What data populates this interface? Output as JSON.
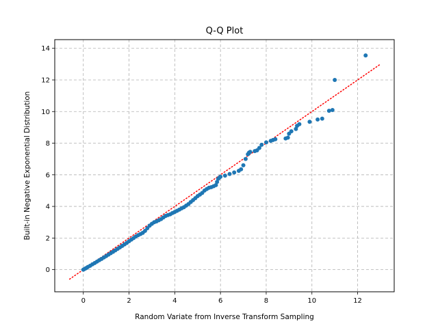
{
  "chart_data": {
    "type": "scatter",
    "title": "Q-Q Plot",
    "xlabel": "Random Variate from Inverse Transform Sampling",
    "ylabel": "Built-in Negative Exponential Distribution",
    "xlim": [
      -1.25,
      13.6
    ],
    "ylim": [
      -1.4,
      14.55
    ],
    "xticks": [
      0,
      2,
      4,
      6,
      8,
      10,
      12
    ],
    "yticks": [
      0,
      2,
      4,
      6,
      8,
      10,
      12,
      14
    ],
    "grid": true,
    "point_color": "#1f77b4",
    "reference_line": {
      "x": [
        -0.6,
        13.0
      ],
      "y": [
        -0.6,
        13.0
      ],
      "color": "#ff0000",
      "style": "dotted"
    },
    "series": [
      {
        "points": [
          [
            0.0,
            0.0
          ],
          [
            0.05,
            0.04
          ],
          [
            0.1,
            0.08
          ],
          [
            0.15,
            0.12
          ],
          [
            0.2,
            0.17
          ],
          [
            0.3,
            0.25
          ],
          [
            0.4,
            0.34
          ],
          [
            0.5,
            0.42
          ],
          [
            0.6,
            0.51
          ],
          [
            0.7,
            0.6
          ],
          [
            0.8,
            0.68
          ],
          [
            0.9,
            0.77
          ],
          [
            1.0,
            0.86
          ],
          [
            1.1,
            0.95
          ],
          [
            1.2,
            1.04
          ],
          [
            1.3,
            1.13
          ],
          [
            1.4,
            1.22
          ],
          [
            1.5,
            1.32
          ],
          [
            1.6,
            1.41
          ],
          [
            1.7,
            1.5
          ],
          [
            1.8,
            1.6
          ],
          [
            1.9,
            1.69
          ],
          [
            2.0,
            1.8
          ],
          [
            2.1,
            1.9
          ],
          [
            2.2,
            2.0
          ],
          [
            2.3,
            2.1
          ],
          [
            2.4,
            2.18
          ],
          [
            2.5,
            2.25
          ],
          [
            2.6,
            2.33
          ],
          [
            2.7,
            2.45
          ],
          [
            2.8,
            2.62
          ],
          [
            2.9,
            2.78
          ],
          [
            3.0,
            2.9
          ],
          [
            3.1,
            3.0
          ],
          [
            3.2,
            3.05
          ],
          [
            3.3,
            3.12
          ],
          [
            3.4,
            3.2
          ],
          [
            3.5,
            3.3
          ],
          [
            3.6,
            3.4
          ],
          [
            3.7,
            3.45
          ],
          [
            3.8,
            3.5
          ],
          [
            3.9,
            3.58
          ],
          [
            4.0,
            3.65
          ],
          [
            4.1,
            3.72
          ],
          [
            4.2,
            3.8
          ],
          [
            4.3,
            3.88
          ],
          [
            4.4,
            3.95
          ],
          [
            4.5,
            4.05
          ],
          [
            4.6,
            4.15
          ],
          [
            4.7,
            4.28
          ],
          [
            4.8,
            4.4
          ],
          [
            4.9,
            4.52
          ],
          [
            5.0,
            4.65
          ],
          [
            5.1,
            4.75
          ],
          [
            5.2,
            4.85
          ],
          [
            5.3,
            5.0
          ],
          [
            5.4,
            5.1
          ],
          [
            5.5,
            5.18
          ],
          [
            5.6,
            5.22
          ],
          [
            5.7,
            5.28
          ],
          [
            5.8,
            5.35
          ],
          [
            5.85,
            5.55
          ],
          [
            5.9,
            5.75
          ],
          [
            5.95,
            5.82
          ],
          [
            6.0,
            5.88
          ],
          [
            6.2,
            5.95
          ],
          [
            6.4,
            6.05
          ],
          [
            6.6,
            6.15
          ],
          [
            6.8,
            6.25
          ],
          [
            6.9,
            6.35
          ],
          [
            7.0,
            6.6
          ],
          [
            7.1,
            7.0
          ],
          [
            7.2,
            7.3
          ],
          [
            7.25,
            7.4
          ],
          [
            7.3,
            7.45
          ],
          [
            7.5,
            7.5
          ],
          [
            7.6,
            7.55
          ],
          [
            7.7,
            7.7
          ],
          [
            7.8,
            7.9
          ],
          [
            8.0,
            8.05
          ],
          [
            8.2,
            8.15
          ],
          [
            8.3,
            8.2
          ],
          [
            8.4,
            8.25
          ],
          [
            8.85,
            8.3
          ],
          [
            8.95,
            8.35
          ],
          [
            9.0,
            8.6
          ],
          [
            9.1,
            8.75
          ],
          [
            9.3,
            8.9
          ],
          [
            9.35,
            9.1
          ],
          [
            9.45,
            9.2
          ],
          [
            9.9,
            9.35
          ],
          [
            10.25,
            9.5
          ],
          [
            10.45,
            9.55
          ],
          [
            10.75,
            10.05
          ],
          [
            10.9,
            10.1
          ],
          [
            11.0,
            12.0
          ],
          [
            12.35,
            13.55
          ]
        ]
      }
    ]
  }
}
